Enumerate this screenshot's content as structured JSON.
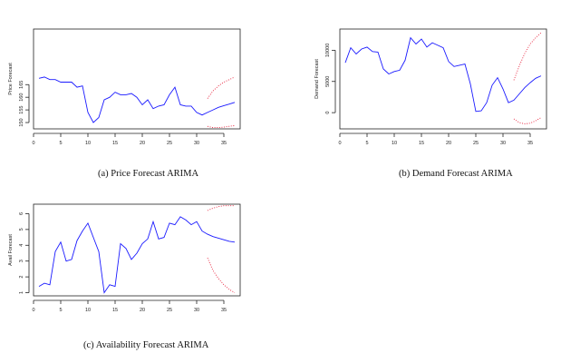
{
  "colors": {
    "forecast": "#1a1aff",
    "interval": "#e8203a",
    "axis": "#222222"
  },
  "chart_data": [
    {
      "type": "line",
      "caption": "(a) Price Forecast ARIMA",
      "ylabel": "Price Forecast",
      "xlabel": "",
      "xlim": [
        0,
        38
      ],
      "ylim": [
        147.5,
        187
      ],
      "x_ticks": [
        0,
        5,
        10,
        15,
        20,
        25,
        30,
        35
      ],
      "y_ticks": [
        150,
        155,
        160,
        165
      ],
      "series": [
        {
          "role": "forecast",
          "x": [
            1,
            2,
            3,
            4,
            5,
            6,
            7,
            8,
            9,
            10,
            11,
            12,
            13,
            14,
            15,
            16,
            17,
            18,
            19,
            20,
            21,
            22,
            23,
            24,
            25,
            26,
            27,
            28,
            29,
            30,
            31,
            32,
            33,
            34,
            35,
            36,
            37
          ],
          "y": [
            167.5,
            168,
            167,
            167,
            166,
            166,
            166,
            164,
            164.5,
            154,
            150,
            152,
            159,
            160,
            162,
            161,
            161,
            161.5,
            160,
            157,
            159,
            155.5,
            156.5,
            157,
            161,
            164,
            157,
            156.5,
            156.5,
            154,
            153,
            154,
            155,
            156,
            156.7,
            157.3,
            158
          ]
        },
        {
          "role": "upper",
          "style": "dotted",
          "x": [
            32,
            33,
            34,
            35,
            36,
            37
          ],
          "y": [
            159.5,
            162.5,
            164.5,
            166,
            167,
            168
          ]
        },
        {
          "role": "lower",
          "style": "dotted",
          "x": [
            32,
            33,
            34,
            35,
            36,
            37
          ],
          "y": [
            148.5,
            148,
            148,
            148.2,
            148.5,
            148.8
          ]
        }
      ]
    },
    {
      "type": "line",
      "caption": "(b) Demand Forecast ARIMA",
      "ylabel": "Demand Forecast",
      "xlabel": "",
      "xlim": [
        0,
        38
      ],
      "ylim": [
        -2600,
        13400
      ],
      "x_ticks": [
        0,
        5,
        10,
        15,
        20,
        25,
        30,
        35
      ],
      "y_ticks": [
        0,
        5000,
        10000
      ],
      "series": [
        {
          "role": "forecast",
          "x": [
            1,
            2,
            3,
            4,
            5,
            6,
            7,
            8,
            9,
            10,
            11,
            12,
            13,
            14,
            15,
            16,
            17,
            18,
            19,
            20,
            21,
            22,
            23,
            24,
            25,
            26,
            27,
            28,
            29,
            30,
            31,
            32,
            33,
            34,
            35,
            36,
            37
          ],
          "y": [
            8000,
            10400,
            9400,
            10200,
            10500,
            9800,
            9700,
            7000,
            6200,
            6600,
            6800,
            8400,
            12000,
            11000,
            11800,
            10500,
            11200,
            10800,
            10400,
            8200,
            7400,
            7600,
            7800,
            4600,
            200,
            300,
            1600,
            4400,
            5600,
            3800,
            1600,
            2000,
            3000,
            4000,
            4800,
            5500,
            5900
          ]
        },
        {
          "role": "upper",
          "style": "dotted",
          "x": [
            32,
            33,
            34,
            35,
            36,
            37
          ],
          "y": [
            5200,
            7500,
            9500,
            11000,
            12000,
            12800
          ]
        },
        {
          "role": "lower",
          "style": "dotted",
          "x": [
            32,
            33,
            34,
            35,
            36,
            37
          ],
          "y": [
            -1000,
            -1600,
            -1800,
            -1700,
            -1300,
            -800
          ]
        }
      ]
    },
    {
      "type": "line",
      "caption": "(c) Availability Forecast ARIMA",
      "ylabel": "Avail Forecast",
      "xlabel": "",
      "xlim": [
        0,
        38
      ],
      "ylim": [
        0.8,
        6.6
      ],
      "x_ticks": [
        0,
        5,
        10,
        15,
        20,
        25,
        30,
        35
      ],
      "y_ticks": [
        1,
        2,
        3,
        4,
        5,
        6
      ],
      "series": [
        {
          "role": "forecast",
          "x": [
            1,
            2,
            3,
            4,
            5,
            6,
            7,
            8,
            9,
            10,
            11,
            12,
            13,
            14,
            15,
            16,
            17,
            18,
            19,
            20,
            21,
            22,
            23,
            24,
            25,
            26,
            27,
            28,
            29,
            30,
            31,
            32,
            33,
            34,
            35,
            36,
            37
          ],
          "y": [
            1.4,
            1.6,
            1.5,
            3.6,
            4.2,
            3.0,
            3.1,
            4.3,
            4.9,
            5.4,
            4.5,
            3.6,
            1.0,
            1.5,
            1.4,
            4.1,
            3.8,
            3.1,
            3.5,
            4.1,
            4.4,
            5.5,
            4.4,
            4.5,
            5.4,
            5.3,
            5.8,
            5.6,
            5.3,
            5.5,
            4.9,
            4.7,
            4.55,
            4.45,
            4.35,
            4.25,
            4.2
          ]
        },
        {
          "role": "upper",
          "style": "dotted",
          "x": [
            32,
            33,
            34,
            35,
            36,
            37
          ],
          "y": [
            6.2,
            6.35,
            6.45,
            6.5,
            6.5,
            6.5
          ]
        },
        {
          "role": "lower",
          "style": "dotted",
          "x": [
            32,
            33,
            34,
            35,
            36,
            37
          ],
          "y": [
            3.2,
            2.4,
            1.9,
            1.5,
            1.2,
            1.0
          ]
        }
      ]
    }
  ]
}
